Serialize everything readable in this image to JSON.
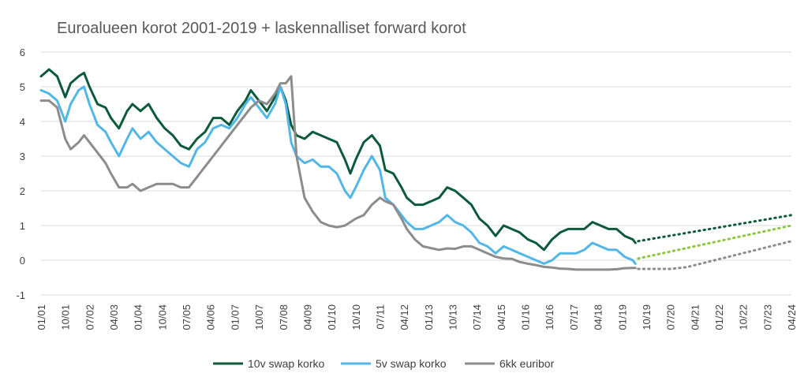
{
  "chart_data": {
    "type": "line",
    "title": "Euroalueen korot 2001-2019 + laskennalliset forward korot",
    "xlabel": "",
    "ylabel": "",
    "ylim": [
      -1,
      6
    ],
    "yticks": [
      "6",
      "5",
      "4",
      "3",
      "2",
      "1",
      "0",
      "-1"
    ],
    "x_range": [
      "2001-01",
      "2024-04"
    ],
    "xticks": [
      "01/01",
      "10/01",
      "07/02",
      "04/03",
      "01/04",
      "10/04",
      "07/05",
      "04/06",
      "01/07",
      "10/07",
      "07/08",
      "04/09",
      "01/10",
      "10/10",
      "07/11",
      "04/12",
      "01/13",
      "10/13",
      "07/14",
      "04/15",
      "01/16",
      "10/16",
      "07/17",
      "04/18",
      "01/19",
      "10/19",
      "07/20",
      "04/21",
      "01/22",
      "10/22",
      "07/23",
      "04/24"
    ],
    "grid": "horizontal",
    "legend_position": "bottom",
    "series": [
      {
        "name": "10v swap korko",
        "color": "#0d5a3a",
        "points": [
          [
            "2001-01",
            5.3
          ],
          [
            "2001-04",
            5.5
          ],
          [
            "2001-07",
            5.3
          ],
          [
            "2001-10",
            4.7
          ],
          [
            "2001-12",
            5.1
          ],
          [
            "2002-03",
            5.3
          ],
          [
            "2002-05",
            5.4
          ],
          [
            "2002-07",
            5.0
          ],
          [
            "2002-10",
            4.5
          ],
          [
            "2003-01",
            4.4
          ],
          [
            "2003-03",
            4.1
          ],
          [
            "2003-06",
            3.8
          ],
          [
            "2003-09",
            4.3
          ],
          [
            "2003-11",
            4.5
          ],
          [
            "2004-02",
            4.3
          ],
          [
            "2004-05",
            4.5
          ],
          [
            "2004-08",
            4.1
          ],
          [
            "2004-11",
            3.8
          ],
          [
            "2005-02",
            3.6
          ],
          [
            "2005-05",
            3.3
          ],
          [
            "2005-08",
            3.2
          ],
          [
            "2005-11",
            3.5
          ],
          [
            "2006-02",
            3.7
          ],
          [
            "2006-05",
            4.1
          ],
          [
            "2006-08",
            4.1
          ],
          [
            "2006-11",
            3.9
          ],
          [
            "2007-02",
            4.3
          ],
          [
            "2007-05",
            4.6
          ],
          [
            "2007-07",
            4.9
          ],
          [
            "2007-10",
            4.6
          ],
          [
            "2008-01",
            4.3
          ],
          [
            "2008-04",
            4.7
          ],
          [
            "2008-06",
            5.0
          ],
          [
            "2008-08",
            4.6
          ],
          [
            "2008-10",
            3.9
          ],
          [
            "2008-12",
            3.6
          ],
          [
            "2009-03",
            3.5
          ],
          [
            "2009-06",
            3.7
          ],
          [
            "2009-09",
            3.6
          ],
          [
            "2009-12",
            3.5
          ],
          [
            "2010-03",
            3.4
          ],
          [
            "2010-06",
            2.9
          ],
          [
            "2010-08",
            2.5
          ],
          [
            "2010-10",
            2.9
          ],
          [
            "2011-01",
            3.4
          ],
          [
            "2011-04",
            3.6
          ],
          [
            "2011-07",
            3.3
          ],
          [
            "2011-09",
            2.6
          ],
          [
            "2011-12",
            2.5
          ],
          [
            "2012-03",
            2.1
          ],
          [
            "2012-05",
            1.8
          ],
          [
            "2012-08",
            1.6
          ],
          [
            "2012-11",
            1.6
          ],
          [
            "2013-02",
            1.7
          ],
          [
            "2013-05",
            1.8
          ],
          [
            "2013-08",
            2.1
          ],
          [
            "2013-11",
            2.0
          ],
          [
            "2014-02",
            1.8
          ],
          [
            "2014-05",
            1.6
          ],
          [
            "2014-08",
            1.2
          ],
          [
            "2014-11",
            1.0
          ],
          [
            "2015-02",
            0.7
          ],
          [
            "2015-05",
            1.0
          ],
          [
            "2015-08",
            0.9
          ],
          [
            "2015-11",
            0.8
          ],
          [
            "2016-02",
            0.6
          ],
          [
            "2016-05",
            0.5
          ],
          [
            "2016-08",
            0.3
          ],
          [
            "2016-11",
            0.6
          ],
          [
            "2017-02",
            0.8
          ],
          [
            "2017-05",
            0.9
          ],
          [
            "2017-08",
            0.9
          ],
          [
            "2017-11",
            0.9
          ],
          [
            "2018-02",
            1.1
          ],
          [
            "2018-05",
            1.0
          ],
          [
            "2018-08",
            0.9
          ],
          [
            "2018-11",
            0.9
          ],
          [
            "2019-02",
            0.7
          ],
          [
            "2019-05",
            0.6
          ],
          [
            "2019-06",
            0.5
          ]
        ]
      },
      {
        "name": "5v swap korko",
        "color": "#52b6e6",
        "points": [
          [
            "2001-01",
            4.9
          ],
          [
            "2001-04",
            4.8
          ],
          [
            "2001-07",
            4.6
          ],
          [
            "2001-10",
            4.0
          ],
          [
            "2001-12",
            4.5
          ],
          [
            "2002-03",
            4.9
          ],
          [
            "2002-05",
            5.0
          ],
          [
            "2002-07",
            4.5
          ],
          [
            "2002-10",
            3.9
          ],
          [
            "2003-01",
            3.7
          ],
          [
            "2003-03",
            3.4
          ],
          [
            "2003-06",
            3.0
          ],
          [
            "2003-09",
            3.5
          ],
          [
            "2003-11",
            3.8
          ],
          [
            "2004-02",
            3.5
          ],
          [
            "2004-05",
            3.7
          ],
          [
            "2004-08",
            3.4
          ],
          [
            "2004-11",
            3.2
          ],
          [
            "2005-02",
            3.0
          ],
          [
            "2005-05",
            2.8
          ],
          [
            "2005-08",
            2.7
          ],
          [
            "2005-11",
            3.2
          ],
          [
            "2006-02",
            3.4
          ],
          [
            "2006-05",
            3.8
          ],
          [
            "2006-08",
            3.9
          ],
          [
            "2006-11",
            3.8
          ],
          [
            "2007-02",
            4.1
          ],
          [
            "2007-05",
            4.5
          ],
          [
            "2007-07",
            4.7
          ],
          [
            "2007-10",
            4.4
          ],
          [
            "2008-01",
            4.1
          ],
          [
            "2008-04",
            4.5
          ],
          [
            "2008-06",
            5.0
          ],
          [
            "2008-08",
            4.5
          ],
          [
            "2008-10",
            3.4
          ],
          [
            "2008-12",
            3.0
          ],
          [
            "2009-03",
            2.8
          ],
          [
            "2009-06",
            2.9
          ],
          [
            "2009-09",
            2.7
          ],
          [
            "2009-12",
            2.7
          ],
          [
            "2010-03",
            2.5
          ],
          [
            "2010-06",
            2.0
          ],
          [
            "2010-08",
            1.8
          ],
          [
            "2010-10",
            2.1
          ],
          [
            "2011-01",
            2.6
          ],
          [
            "2011-04",
            3.0
          ],
          [
            "2011-07",
            2.6
          ],
          [
            "2011-09",
            1.8
          ],
          [
            "2011-12",
            1.6
          ],
          [
            "2012-03",
            1.3
          ],
          [
            "2012-05",
            1.1
          ],
          [
            "2012-08",
            0.9
          ],
          [
            "2012-11",
            0.9
          ],
          [
            "2013-02",
            1.0
          ],
          [
            "2013-05",
            1.1
          ],
          [
            "2013-08",
            1.3
          ],
          [
            "2013-11",
            1.1
          ],
          [
            "2014-02",
            1.0
          ],
          [
            "2014-05",
            0.8
          ],
          [
            "2014-08",
            0.5
          ],
          [
            "2014-11",
            0.4
          ],
          [
            "2015-02",
            0.2
          ],
          [
            "2015-05",
            0.4
          ],
          [
            "2015-08",
            0.3
          ],
          [
            "2015-11",
            0.2
          ],
          [
            "2016-02",
            0.1
          ],
          [
            "2016-05",
            0.0
          ],
          [
            "2016-08",
            -0.1
          ],
          [
            "2016-11",
            0.0
          ],
          [
            "2017-02",
            0.2
          ],
          [
            "2017-05",
            0.2
          ],
          [
            "2017-08",
            0.2
          ],
          [
            "2017-11",
            0.3
          ],
          [
            "2018-02",
            0.5
          ],
          [
            "2018-05",
            0.4
          ],
          [
            "2018-08",
            0.3
          ],
          [
            "2018-11",
            0.3
          ],
          [
            "2019-02",
            0.1
          ],
          [
            "2019-05",
            0.0
          ],
          [
            "2019-06",
            -0.1
          ]
        ]
      },
      {
        "name": "6kk euribor",
        "color": "#8c8c8c",
        "points": [
          [
            "2001-01",
            4.6
          ],
          [
            "2001-04",
            4.6
          ],
          [
            "2001-07",
            4.4
          ],
          [
            "2001-10",
            3.5
          ],
          [
            "2001-12",
            3.2
          ],
          [
            "2002-03",
            3.4
          ],
          [
            "2002-05",
            3.6
          ],
          [
            "2002-07",
            3.4
          ],
          [
            "2002-10",
            3.1
          ],
          [
            "2003-01",
            2.8
          ],
          [
            "2003-03",
            2.5
          ],
          [
            "2003-06",
            2.1
          ],
          [
            "2003-09",
            2.1
          ],
          [
            "2003-11",
            2.2
          ],
          [
            "2004-02",
            2.0
          ],
          [
            "2004-05",
            2.1
          ],
          [
            "2004-08",
            2.2
          ],
          [
            "2004-11",
            2.2
          ],
          [
            "2005-02",
            2.2
          ],
          [
            "2005-05",
            2.1
          ],
          [
            "2005-08",
            2.1
          ],
          [
            "2005-11",
            2.4
          ],
          [
            "2006-02",
            2.7
          ],
          [
            "2006-05",
            3.0
          ],
          [
            "2006-08",
            3.3
          ],
          [
            "2006-11",
            3.6
          ],
          [
            "2007-02",
            3.9
          ],
          [
            "2007-05",
            4.2
          ],
          [
            "2007-07",
            4.4
          ],
          [
            "2007-10",
            4.6
          ],
          [
            "2008-01",
            4.5
          ],
          [
            "2008-04",
            4.8
          ],
          [
            "2008-06",
            5.1
          ],
          [
            "2008-08",
            5.1
          ],
          [
            "2008-10",
            5.3
          ],
          [
            "2008-12",
            3.0
          ],
          [
            "2009-03",
            1.8
          ],
          [
            "2009-06",
            1.4
          ],
          [
            "2009-09",
            1.1
          ],
          [
            "2009-12",
            1.0
          ],
          [
            "2010-03",
            0.95
          ],
          [
            "2010-06",
            1.0
          ],
          [
            "2010-08",
            1.1
          ],
          [
            "2010-10",
            1.2
          ],
          [
            "2011-01",
            1.3
          ],
          [
            "2011-04",
            1.6
          ],
          [
            "2011-07",
            1.8
          ],
          [
            "2011-09",
            1.7
          ],
          [
            "2011-12",
            1.6
          ],
          [
            "2012-03",
            1.2
          ],
          [
            "2012-05",
            0.9
          ],
          [
            "2012-08",
            0.6
          ],
          [
            "2012-11",
            0.4
          ],
          [
            "2013-02",
            0.35
          ],
          [
            "2013-05",
            0.3
          ],
          [
            "2013-08",
            0.34
          ],
          [
            "2013-11",
            0.33
          ],
          [
            "2014-02",
            0.4
          ],
          [
            "2014-05",
            0.4
          ],
          [
            "2014-08",
            0.3
          ],
          [
            "2014-11",
            0.2
          ],
          [
            "2015-02",
            0.1
          ],
          [
            "2015-05",
            0.05
          ],
          [
            "2015-08",
            0.04
          ],
          [
            "2015-11",
            -0.05
          ],
          [
            "2016-02",
            -0.1
          ],
          [
            "2016-05",
            -0.14
          ],
          [
            "2016-08",
            -0.19
          ],
          [
            "2016-11",
            -0.21
          ],
          [
            "2017-02",
            -0.24
          ],
          [
            "2017-05",
            -0.25
          ],
          [
            "2017-08",
            -0.27
          ],
          [
            "2017-11",
            -0.27
          ],
          [
            "2018-02",
            -0.27
          ],
          [
            "2018-05",
            -0.27
          ],
          [
            "2018-08",
            -0.27
          ],
          [
            "2018-11",
            -0.26
          ],
          [
            "2019-02",
            -0.23
          ],
          [
            "2019-05",
            -0.22
          ],
          [
            "2019-06",
            -0.22
          ]
        ]
      }
    ],
    "forwards": [
      {
        "series": "10v swap korko",
        "color": "#0d5a3a",
        "points": [
          [
            "2019-07",
            0.55
          ],
          [
            "2024-04",
            1.3
          ]
        ]
      },
      {
        "series": "5v swap korko",
        "color": "#8dc63f",
        "points": [
          [
            "2019-07",
            0.05
          ],
          [
            "2024-04",
            1.0
          ]
        ]
      },
      {
        "series": "6kk euribor",
        "color": "#8c8c8c",
        "points": [
          [
            "2019-07",
            -0.25
          ],
          [
            "2020-07",
            -0.25
          ],
          [
            "2021-01",
            -0.2
          ],
          [
            "2024-04",
            0.55
          ]
        ]
      }
    ]
  }
}
